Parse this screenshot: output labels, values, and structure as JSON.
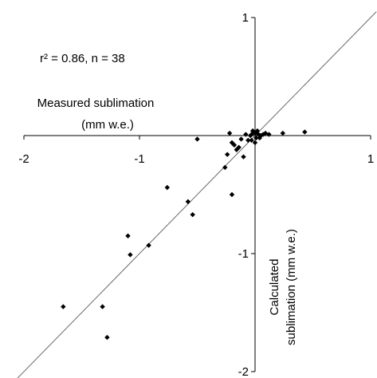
{
  "chart_data": {
    "type": "scatter",
    "title": "",
    "annotation": "r² = 0.86, n = 38",
    "xlabel": [
      "Measured sublimation",
      "(mm w.e.)"
    ],
    "ylabel": [
      "Calculated",
      "sublimation (mm w.e.)"
    ],
    "xlim": [
      -2,
      1
    ],
    "ylim": [
      -2,
      1
    ],
    "x_ticks": [
      {
        "value": -2,
        "label": "-2"
      },
      {
        "value": -1,
        "label": "-1"
      },
      {
        "value": 1,
        "label": "1"
      }
    ],
    "y_ticks": [
      {
        "value": 1,
        "label": "1"
      },
      {
        "value": -1,
        "label": "-1"
      },
      {
        "value": -2,
        "label": "-2"
      }
    ],
    "reference_line": "1:1",
    "grid": false,
    "marker": "diamond",
    "color": "#000000",
    "points": [
      {
        "x": -1.66,
        "y": -1.45
      },
      {
        "x": -1.32,
        "y": -1.45
      },
      {
        "x": -1.28,
        "y": -1.71
      },
      {
        "x": -1.1,
        "y": -0.85
      },
      {
        "x": -1.08,
        "y": -1.01
      },
      {
        "x": -0.92,
        "y": -0.93
      },
      {
        "x": -0.76,
        "y": -0.44
      },
      {
        "x": -0.58,
        "y": -0.56
      },
      {
        "x": -0.54,
        "y": -0.67
      },
      {
        "x": -0.5,
        "y": -0.03
      },
      {
        "x": -0.26,
        "y": -0.27
      },
      {
        "x": -0.2,
        "y": -0.5
      },
      {
        "x": -0.24,
        "y": -0.16
      },
      {
        "x": -0.22,
        "y": 0.02
      },
      {
        "x": -0.2,
        "y": -0.06
      },
      {
        "x": -0.18,
        "y": -0.08
      },
      {
        "x": -0.16,
        "y": -0.12
      },
      {
        "x": -0.14,
        "y": -0.1
      },
      {
        "x": -0.12,
        "y": -0.03
      },
      {
        "x": -0.1,
        "y": -0.18
      },
      {
        "x": -0.08,
        "y": 0.01
      },
      {
        "x": -0.06,
        "y": -0.04
      },
      {
        "x": -0.04,
        "y": 0.0
      },
      {
        "x": -0.03,
        "y": -0.04
      },
      {
        "x": -0.02,
        "y": 0.02
      },
      {
        "x": -0.02,
        "y": 0.04
      },
      {
        "x": 0.0,
        "y": 0.02
      },
      {
        "x": 0.0,
        "y": -0.06
      },
      {
        "x": 0.01,
        "y": -0.02
      },
      {
        "x": 0.02,
        "y": 0.04
      },
      {
        "x": 0.03,
        "y": 0.01
      },
      {
        "x": 0.04,
        "y": -0.02
      },
      {
        "x": 0.05,
        "y": 0.0
      },
      {
        "x": 0.07,
        "y": 0.01
      },
      {
        "x": 0.09,
        "y": 0.02
      },
      {
        "x": 0.12,
        "y": 0.01
      },
      {
        "x": 0.24,
        "y": 0.02
      },
      {
        "x": 0.43,
        "y": 0.03
      }
    ]
  }
}
